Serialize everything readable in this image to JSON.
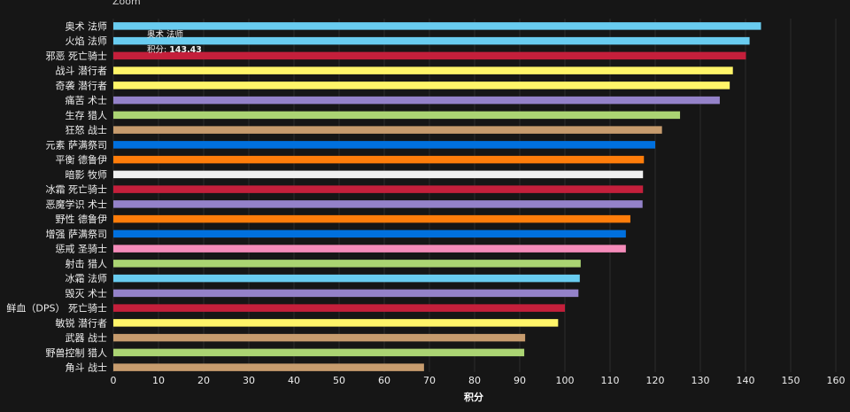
{
  "zoom_label": "Zoom",
  "tooltip": {
    "title": "奥术 法师",
    "label": "积分:",
    "value": "143.43"
  },
  "chart_data": {
    "type": "bar",
    "orientation": "horizontal",
    "xlabel": "积分",
    "ylabel": "",
    "xlim": [
      0,
      160
    ],
    "xticks": [
      0,
      10,
      20,
      30,
      40,
      50,
      60,
      70,
      80,
      90,
      100,
      110,
      120,
      130,
      140,
      150,
      160
    ],
    "grid": true,
    "categories": [
      "奥术 法师",
      "火焰 法师",
      "邪恶 死亡骑士",
      "战斗 潜行者",
      "奇袭 潜行者",
      "痛苦 术士",
      "生存 猎人",
      "狂怒 战士",
      "元素 萨满祭司",
      "平衡 德鲁伊",
      "暗影 牧师",
      "冰霜 死亡骑士",
      "恶魔学识 术士",
      "野性 德鲁伊",
      "增强 萨满祭司",
      "惩戒 圣骑士",
      "射击 猎人",
      "冰霜 法师",
      "毁灭 术士",
      "鲜血（DPS） 死亡骑士",
      "敏锐 潜行者",
      "武器 战士",
      "野兽控制 猎人",
      "角斗 战士"
    ],
    "values": [
      143.43,
      140.9,
      140.1,
      137.2,
      136.5,
      134.3,
      125.5,
      121.5,
      120.0,
      117.5,
      117.3,
      117.3,
      117.2,
      114.5,
      113.5,
      113.5,
      103.5,
      103.3,
      103.0,
      100.0,
      98.5,
      91.2,
      91.0,
      68.8
    ],
    "colors": [
      "#69ccf0",
      "#69ccf0",
      "#c41f3b",
      "#fff569",
      "#fff569",
      "#9482c9",
      "#abd473",
      "#c79c6e",
      "#0070de",
      "#ff7d0a",
      "#f0f0f0",
      "#c41f3b",
      "#9482c9",
      "#ff7d0a",
      "#0070de",
      "#f58cba",
      "#abd473",
      "#69ccf0",
      "#9482c9",
      "#c41f3b",
      "#fff569",
      "#c79c6e",
      "#abd473",
      "#c79c6e"
    ]
  }
}
